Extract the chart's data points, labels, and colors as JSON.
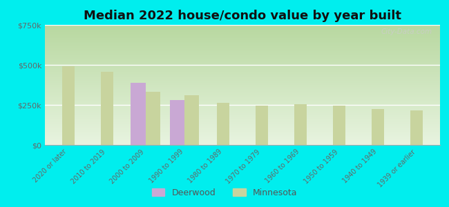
{
  "title": "Median 2022 house/condo value by year built",
  "categories": [
    "2020 or later",
    "2010 to 2019",
    "2000 to 2009",
    "1990 to 1999",
    "1980 to 1989",
    "1970 to 1979",
    "1960 to 1969",
    "1950 to 1959",
    "1940 to 1949",
    "1939 or earlier"
  ],
  "deerwood_values": [
    null,
    null,
    390000,
    280000,
    null,
    null,
    null,
    null,
    null,
    null
  ],
  "minnesota_values": [
    490000,
    455000,
    330000,
    310000,
    265000,
    245000,
    255000,
    245000,
    225000,
    215000
  ],
  "deerwood_color": "#c9a8d4",
  "minnesota_color": "#c8d49e",
  "background_color": "#00eeee",
  "ylim": [
    0,
    750000
  ],
  "yticks": [
    0,
    250000,
    500000,
    750000
  ],
  "ytick_labels": [
    "$0",
    "$250k",
    "$500k",
    "$750k"
  ],
  "title_fontsize": 13,
  "watermark": "City-Data.com",
  "bar_width": 0.38,
  "plot_bg_color": "#ddeedd"
}
